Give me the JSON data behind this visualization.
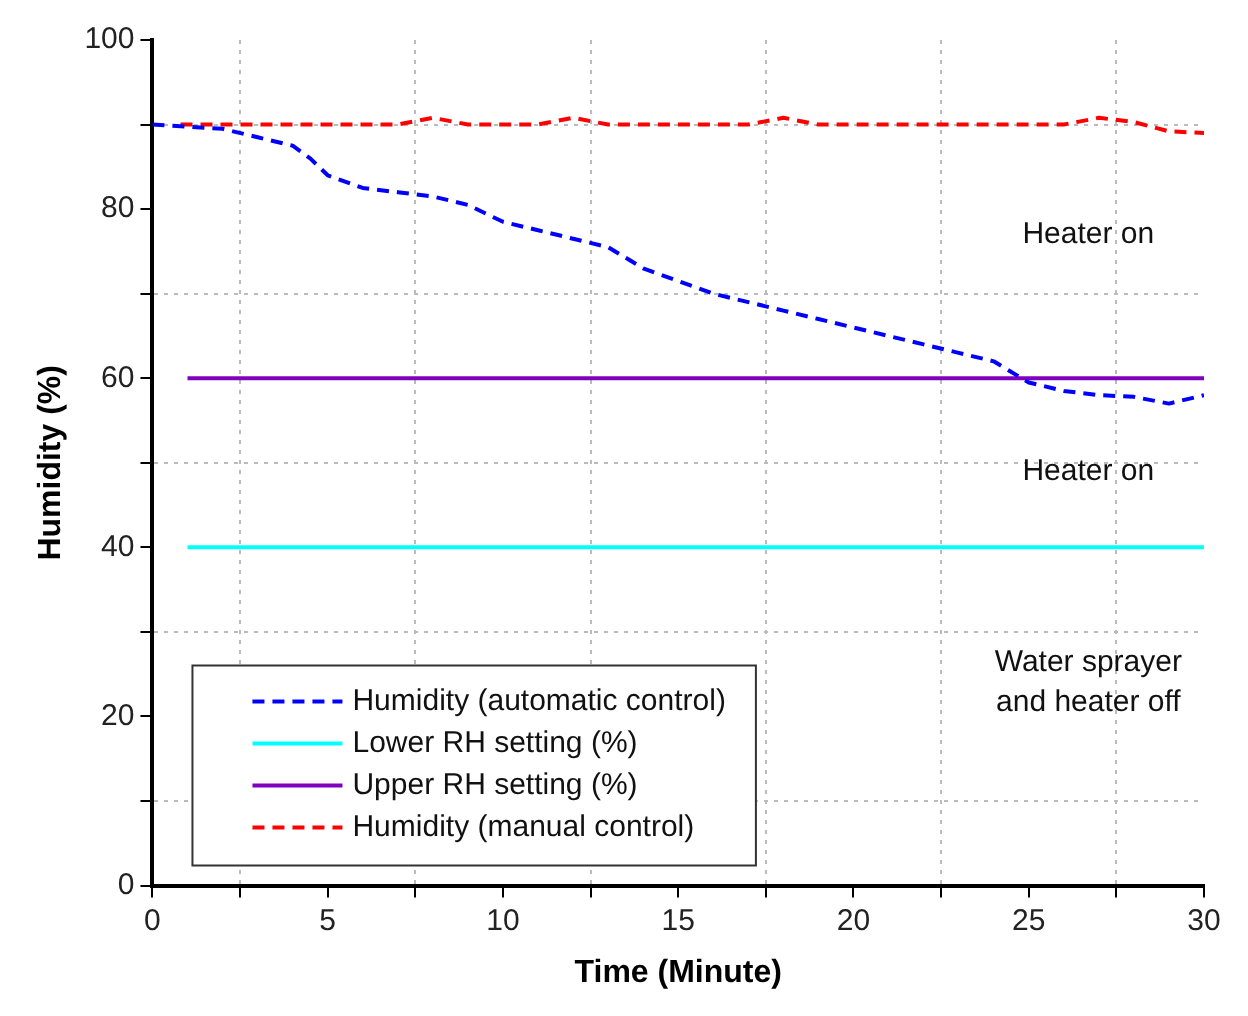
{
  "chart_data": {
    "type": "line",
    "xlabel": "Time (Minute)",
    "ylabel": "Humidity (%)",
    "xlim": [
      0,
      30
    ],
    "ylim": [
      0,
      100
    ],
    "xticks": [
      0,
      {
        "value": 2.5,
        "label": null
      },
      5,
      {
        "value": 7.5,
        "label": null
      },
      10,
      {
        "value": 12.5,
        "label": null
      },
      15,
      {
        "value": 17.5,
        "label": null
      },
      20,
      {
        "value": 22.5,
        "label": null
      },
      25,
      {
        "value": 27.5,
        "label": null
      },
      30
    ],
    "yticks": [
      0,
      {
        "value": 10,
        "label": null
      },
      20,
      {
        "value": 30,
        "label": null
      },
      40,
      {
        "value": 50,
        "label": null
      },
      60,
      {
        "value": 70,
        "label": null
      },
      80,
      {
        "value": 90,
        "label": null
      },
      100
    ],
    "grid": true,
    "legend": "bottom left",
    "series": [
      {
        "name": "Humidity (automatic control)",
        "color": "#0000ff",
        "line_style": "dashed",
        "x": [
          0,
          2,
          3,
          4,
          4.5,
          5,
          6,
          7,
          8,
          9,
          10,
          11,
          12,
          13,
          14,
          15,
          16,
          17,
          18,
          19,
          20,
          21,
          22,
          23,
          24,
          25,
          26,
          27,
          28,
          29,
          30
        ],
        "values": [
          90,
          89.5,
          88.5,
          87.5,
          86,
          84,
          82.5,
          82,
          81.5,
          80.5,
          78.5,
          77.5,
          76.5,
          75.5,
          73,
          71.5,
          70,
          69,
          68,
          67,
          66,
          65,
          64,
          63,
          62,
          59.5,
          58.5,
          58,
          57.8,
          57,
          58
        ]
      },
      {
        "name": "Lower RH setting (%)",
        "color": "#00ffff",
        "line_style": "solid",
        "x": [
          1,
          30
        ],
        "values": [
          40,
          40
        ]
      },
      {
        "name": "Upper RH setting (%)",
        "color": "#8000c0",
        "line_style": "solid",
        "x": [
          1,
          30
        ],
        "values": [
          60,
          60
        ]
      },
      {
        "name": "Humidity (manual control)",
        "color": "#ff0000",
        "line_style": "dashed",
        "x": [
          0.8,
          7,
          8,
          9,
          11,
          12,
          13,
          17,
          18,
          19,
          26,
          27,
          28,
          29,
          30
        ],
        "values": [
          90,
          90,
          90.8,
          90,
          90,
          90.8,
          90,
          90,
          90.8,
          90,
          90,
          90.8,
          90.3,
          89.2,
          89
        ]
      }
    ],
    "annotations": [
      "Heater on",
      "Heater on",
      "Water sprayer and heater off"
    ]
  }
}
